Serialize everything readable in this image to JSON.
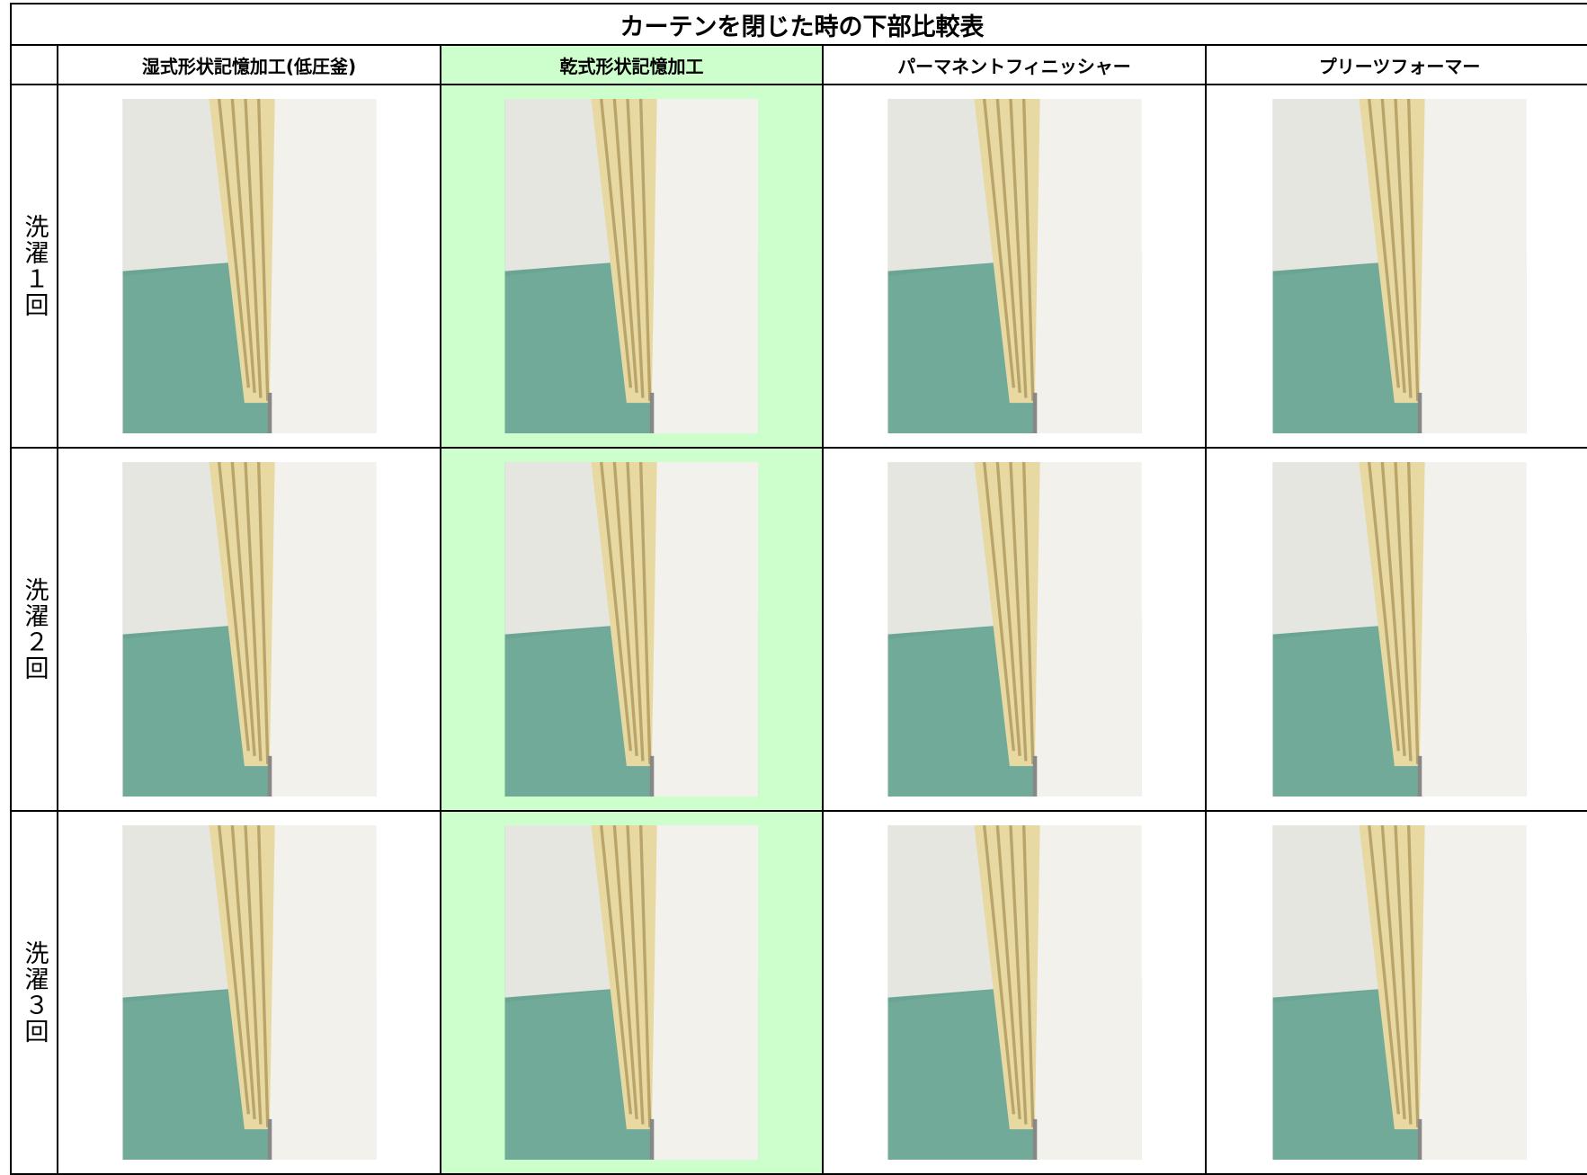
{
  "title": "カーテンを閉じた時の下部比較表",
  "table": {
    "columns": [
      "湿式形状記憶加工(低圧釜)",
      "乾式形状記憶加工",
      "パーマネントフィニッシャー",
      "プリーツフォーマー"
    ],
    "rows": [
      "洗濯１回",
      "洗濯２回",
      "洗濯３回"
    ]
  }
}
